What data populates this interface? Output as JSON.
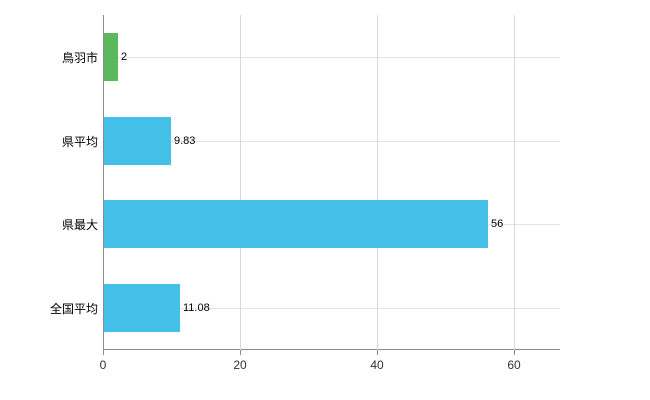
{
  "chart_data": {
    "type": "bar",
    "orientation": "horizontal",
    "title": "",
    "xlabel": "",
    "ylabel": "",
    "categories": [
      "鳥羽市",
      "県平均",
      "県最大",
      "全国平均"
    ],
    "values": [
      2,
      9.83,
      56,
      11.08
    ],
    "value_labels": [
      "2",
      "9.83",
      "56",
      "11.08"
    ],
    "bar_colors": [
      "#5cb85c",
      "#45c0e8",
      "#45c0e8",
      "#45c0e8"
    ],
    "x_ticks": [
      0,
      20,
      40,
      60
    ],
    "x_tick_labels": [
      "0",
      "20",
      "40",
      "60"
    ],
    "xlim": [
      0,
      66.7
    ],
    "grid": "vertical-and-horizontal",
    "legend": "none",
    "background_color": "#ffffff",
    "axis_color": "#8a8a8a",
    "gridline_color": "#d9d9d9"
  }
}
